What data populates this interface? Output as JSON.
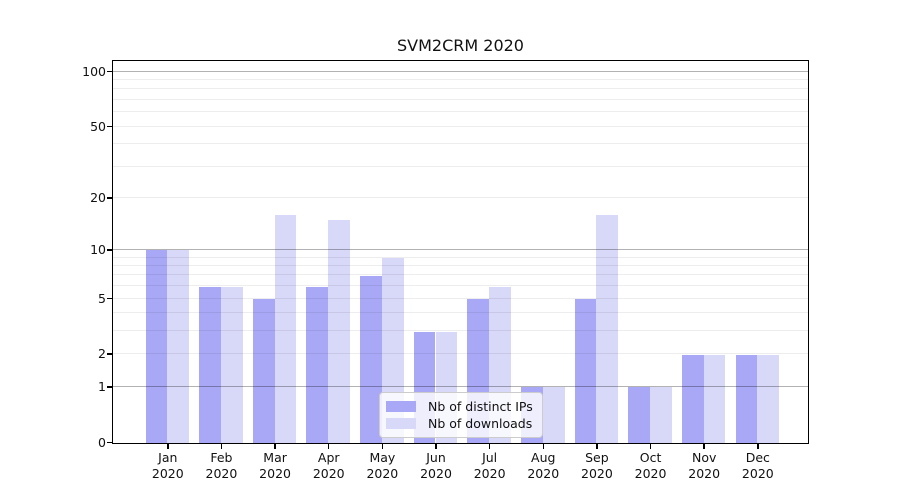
{
  "title": "SVM2CRM 2020",
  "colors": {
    "distinct_ips": "#a8a8f6",
    "downloads": "#d8d8f8",
    "grid_major": "rgba(0,0,0,0.30)",
    "grid_minor": "rgba(0,0,0,0.07)",
    "spine": "#000000"
  },
  "legend": {
    "entries": [
      {
        "label": "Nb of distinct IPs",
        "series": "distinct_ips"
      },
      {
        "label": "Nb of downloads",
        "series": "downloads"
      }
    ],
    "position": "inside lower center"
  },
  "chart_data": {
    "type": "bar",
    "title": "SVM2CRM 2020",
    "categories": [
      "Jan 2020",
      "Feb 2020",
      "Mar 2020",
      "Apr 2020",
      "May 2020",
      "Jun 2020",
      "Jul 2020",
      "Aug 2020",
      "Sep 2020",
      "Oct 2020",
      "Nov 2020",
      "Dec 2020"
    ],
    "series": [
      {
        "name": "Nb of distinct IPs",
        "key": "distinct_ips",
        "color": "#a8a8f6",
        "values": [
          10,
          6,
          5,
          6,
          7,
          3,
          5,
          1,
          5,
          1,
          2,
          2
        ]
      },
      {
        "name": "Nb of downloads",
        "key": "downloads",
        "color": "#d8d8f8",
        "values": [
          10,
          6,
          16,
          15,
          9,
          3,
          6,
          1,
          16,
          1,
          2,
          2
        ]
      }
    ],
    "xlabel": "",
    "ylabel": "",
    "yscale": "log1p",
    "ylim": [
      0,
      113.6
    ],
    "y_tick_values": [
      0,
      1,
      2,
      5,
      10,
      20,
      50,
      100
    ],
    "major_gridline_values": [
      1,
      10,
      100
    ],
    "minor_gridline_values": [
      2,
      3,
      4,
      5,
      6,
      7,
      8,
      9,
      20,
      30,
      40,
      50,
      60,
      70,
      80,
      90
    ],
    "grid": true,
    "legend_position": "lower center inside"
  }
}
